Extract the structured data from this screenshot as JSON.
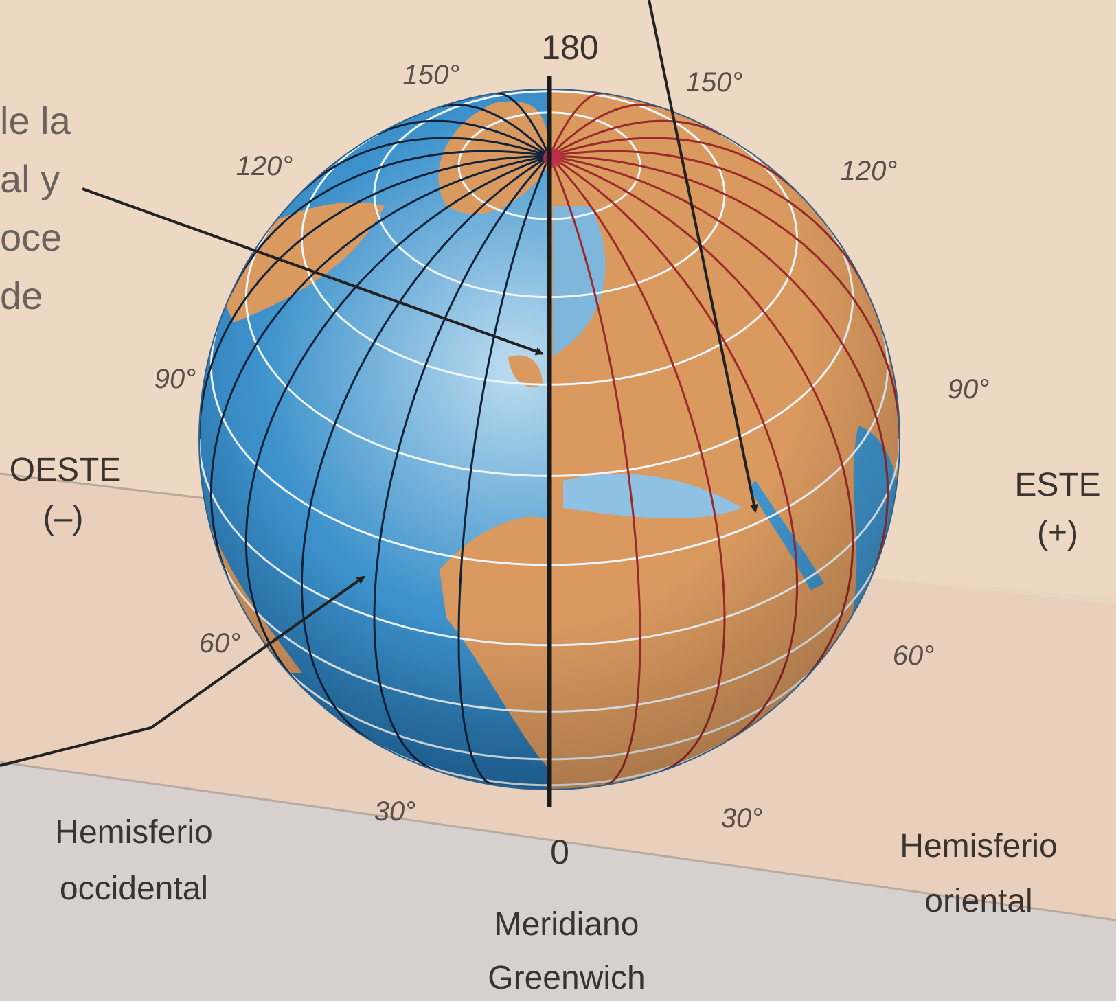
{
  "cut_text": [
    "le la",
    "al y",
    "oce",
    "de"
  ],
  "meridian_labels": {
    "top": "180",
    "bottom": "0"
  },
  "west_degrees": [
    "150°",
    "120°",
    "90°",
    "60°",
    "30°"
  ],
  "east_degrees": [
    "150°",
    "120°",
    "90°",
    "60°",
    "30°"
  ],
  "west": {
    "title": "OESTE",
    "sign": "(–)"
  },
  "east": {
    "title": "ESTE",
    "sign": "(+)"
  },
  "west_hemisphere": [
    "Hemisferio",
    "occidental"
  ],
  "east_hemisphere": [
    "Hemisferio",
    "oriental"
  ],
  "greenwich": [
    "Meridiano",
    "Greenwich"
  ]
}
